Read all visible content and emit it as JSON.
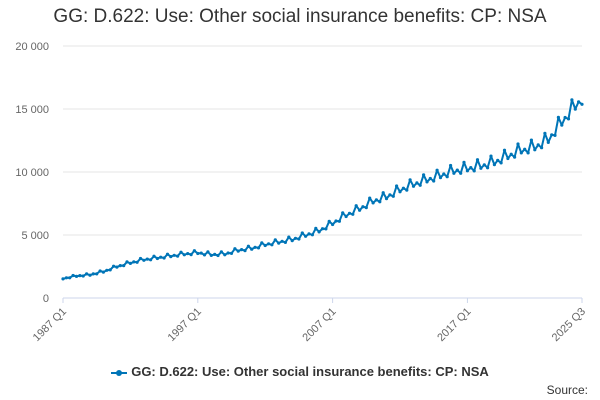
{
  "chart_data": {
    "type": "line",
    "title": "GG: D.622: Use: Other social insurance benefits: CP: NSA",
    "xlabel": "",
    "ylabel": "",
    "ylim": [
      0,
      20000
    ],
    "yticks": [
      0,
      5000,
      10000,
      15000,
      20000
    ],
    "ytick_labels": [
      "0",
      "5 000",
      "10 000",
      "15 000",
      "20 000"
    ],
    "xtick_labels": [
      "1987 Q1",
      "1997 Q1",
      "2007 Q1",
      "2017 Q1",
      "2025 Q3"
    ],
    "grid": true,
    "legend_position": "bottom",
    "color": "#0075b7",
    "series": [
      {
        "name": "GG: D.622: Use: Other social insurance benefits: CP: NSA",
        "start_year": 1987,
        "start_quarter": 1,
        "annual_points": [
          [
            1987,
            1550
          ],
          [
            1988,
            1750
          ],
          [
            1989,
            1850
          ],
          [
            1990,
            2100
          ],
          [
            1991,
            2500
          ],
          [
            1992,
            2800
          ],
          [
            1993,
            3050
          ],
          [
            1994,
            3200
          ],
          [
            1995,
            3350
          ],
          [
            1996,
            3500
          ],
          [
            1997,
            3600
          ],
          [
            1998,
            3450
          ],
          [
            1999,
            3500
          ],
          [
            2000,
            3800
          ],
          [
            2001,
            3950
          ],
          [
            2002,
            4250
          ],
          [
            2003,
            4450
          ],
          [
            2004,
            4650
          ],
          [
            2005,
            5000
          ],
          [
            2006,
            5350
          ],
          [
            2007,
            5950
          ],
          [
            2008,
            6600
          ],
          [
            2009,
            7100
          ],
          [
            2010,
            7700
          ],
          [
            2011,
            8050
          ],
          [
            2012,
            8600
          ],
          [
            2013,
            9050
          ],
          [
            2014,
            9400
          ],
          [
            2015,
            9750
          ],
          [
            2016,
            10100
          ],
          [
            2017,
            10300
          ],
          [
            2018,
            10500
          ],
          [
            2019,
            10800
          ],
          [
            2020,
            11300
          ],
          [
            2021,
            11750
          ],
          [
            2022,
            12000
          ],
          [
            2023,
            12600
          ],
          [
            2024,
            14000
          ],
          [
            2025,
            15300
          ],
          [
            2025.5,
            15850
          ]
        ],
        "seasonal_pattern": [
          -0.02,
          0.0,
          -0.03,
          0.05
        ]
      }
    ]
  },
  "legend": {
    "label": "GG: D.622: Use: Other social insurance benefits: CP: NSA"
  },
  "footer": {
    "source_label": "Source:"
  }
}
